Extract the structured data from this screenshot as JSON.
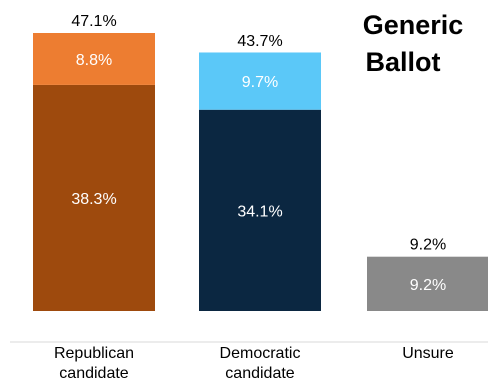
{
  "chart_data": {
    "type": "bar",
    "stacked": true,
    "title_lines": [
      "Generic",
      "Ballot"
    ],
    "categories": [
      {
        "label_lines": [
          "Republican",
          "candidate"
        ],
        "total_label": "47.1%",
        "total": 47.1,
        "segments": [
          {
            "value": 38.3,
            "label": "38.3%",
            "color": "#9E4A0D"
          },
          {
            "value": 8.8,
            "label": "8.8%",
            "color": "#ED7D31"
          }
        ]
      },
      {
        "label_lines": [
          "Democratic",
          "candidate"
        ],
        "total_label": "43.7%",
        "total": 43.7,
        "segments": [
          {
            "value": 34.1,
            "label": "34.1%",
            "color": "#0B2741"
          },
          {
            "value": 9.7,
            "label": "9.7%",
            "color": "#5BC8F8"
          }
        ]
      },
      {
        "label_lines": [
          "Unsure"
        ],
        "total_label": "9.2%",
        "total": 9.2,
        "segments": [
          {
            "value": 9.2,
            "label": "9.2%",
            "color": "#898989"
          }
        ]
      }
    ],
    "ylim": [
      0,
      50
    ],
    "grid": false,
    "axis_line_color": "#D9D9D9"
  }
}
